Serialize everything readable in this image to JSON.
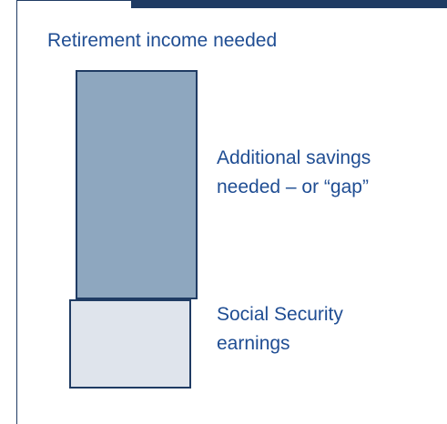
{
  "heading": "Retirement income needed",
  "blocks": [
    {
      "id": "gap",
      "label_lines": [
        "Additional savings",
        "needed – or “gap”"
      ],
      "fill": "#8ea7bf"
    },
    {
      "id": "social_security",
      "label_lines": [
        "Social Security",
        "earnings"
      ],
      "fill": "#dfe4ec"
    }
  ],
  "colors": {
    "text": "#1f4d93",
    "outline": "#1f3b63",
    "frame": "#1f3b63"
  }
}
